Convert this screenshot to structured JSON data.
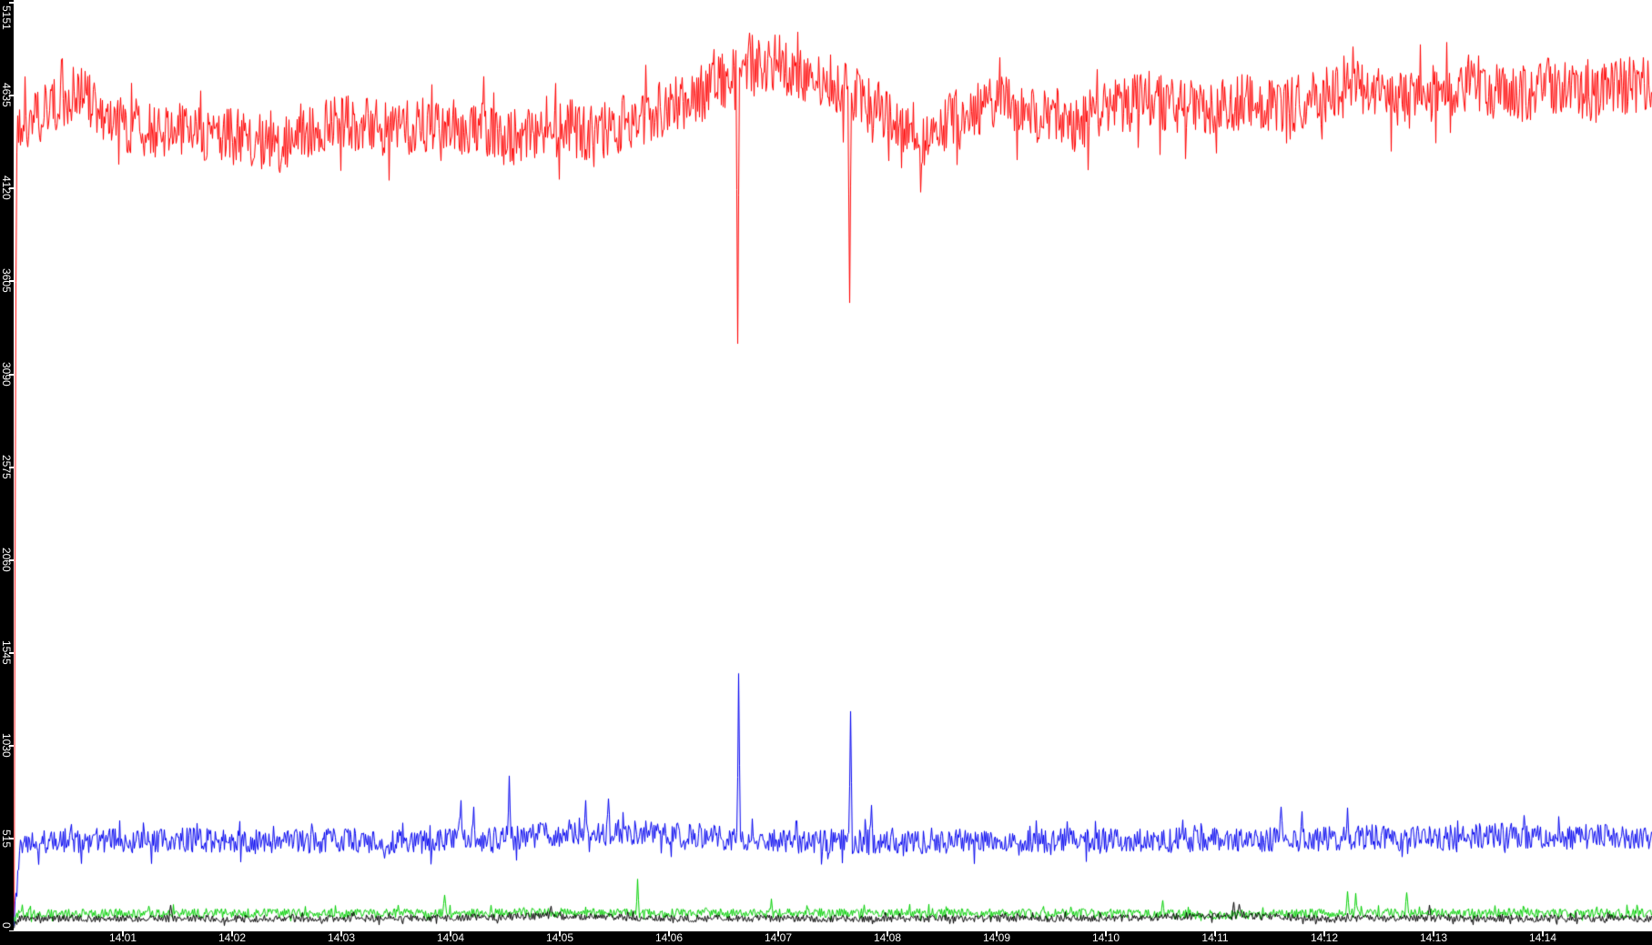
{
  "window": {
    "background_color": "#ffffff",
    "axis_bar_color": "#000000",
    "axis_text_color": "#ffffff",
    "axis_tick_color": "#ffffff"
  },
  "chart_data": {
    "type": "line",
    "title": "",
    "grid": "off",
    "legend": "none",
    "x_axis": {
      "start": "14:00",
      "end": "14:15",
      "minutes_per_tick": 1,
      "tick_labels": [
        "14:01",
        "14:02",
        "14:03",
        "14:04",
        "14:05",
        "14:06",
        "14:07",
        "14:08",
        "14:09",
        "14:10",
        "14:11",
        "14:12",
        "14:13",
        "14:14"
      ]
    },
    "y_axis": {
      "min": 0,
      "max": 5151,
      "tick_values": [
        5151,
        4635,
        4120,
        3605,
        3090,
        2575,
        2060,
        1545,
        1030,
        515,
        0
      ],
      "tick_labels": [
        "5151",
        "4635",
        "4120",
        "3605",
        "3090",
        "2575",
        "2060",
        "1545",
        "1030",
        "515",
        "0"
      ]
    },
    "series": [
      {
        "name": "red",
        "color": "#ff0000",
        "noise": 160,
        "anchors": [
          [
            0,
            200
          ],
          [
            0.02,
            4430
          ],
          [
            0.4,
            4600
          ],
          [
            0.6,
            4670
          ],
          [
            0.9,
            4470
          ],
          [
            1.3,
            4450
          ],
          [
            1.8,
            4420
          ],
          [
            2.2,
            4400
          ],
          [
            2.45,
            4350
          ],
          [
            2.7,
            4450
          ],
          [
            3.1,
            4480
          ],
          [
            3.5,
            4440
          ],
          [
            3.9,
            4480
          ],
          [
            4.3,
            4440
          ],
          [
            4.55,
            4400
          ],
          [
            4.9,
            4480
          ],
          [
            5.3,
            4430
          ],
          [
            5.7,
            4500
          ],
          [
            6.0,
            4570
          ],
          [
            6.3,
            4650
          ],
          [
            6.7,
            4780
          ],
          [
            7.0,
            4820
          ],
          [
            7.2,
            4750
          ],
          [
            7.5,
            4700
          ],
          [
            7.9,
            4560
          ],
          [
            8.15,
            4480
          ],
          [
            8.35,
            4390
          ],
          [
            8.6,
            4520
          ],
          [
            9.0,
            4600
          ],
          [
            9.35,
            4520
          ],
          [
            9.7,
            4480
          ],
          [
            10.0,
            4550
          ],
          [
            10.4,
            4620
          ],
          [
            10.8,
            4560
          ],
          [
            11.2,
            4600
          ],
          [
            11.6,
            4560
          ],
          [
            12.0,
            4640
          ],
          [
            12.4,
            4700
          ],
          [
            12.7,
            4600
          ],
          [
            13.0,
            4650
          ],
          [
            13.35,
            4720
          ],
          [
            13.7,
            4620
          ],
          [
            14.1,
            4700
          ],
          [
            14.5,
            4640
          ],
          [
            14.8,
            4700
          ],
          [
            15,
            4680
          ]
        ],
        "spikes": [
          [
            6.625,
            3260
          ],
          [
            7.65,
            3486
          ],
          [
            8.3,
            4100
          ]
        ]
      },
      {
        "name": "blue",
        "color": "#0000f0",
        "noise": 70,
        "anchors": [
          [
            0,
            60
          ],
          [
            0.02,
            190
          ],
          [
            0.06,
            480
          ],
          [
            0.5,
            505
          ],
          [
            1,
            500
          ],
          [
            1.5,
            510
          ],
          [
            2,
            495
          ],
          [
            2.5,
            500
          ],
          [
            3,
            505
          ],
          [
            3.5,
            495
          ],
          [
            4,
            505
          ],
          [
            4.5,
            515
          ],
          [
            5,
            540
          ],
          [
            5.4,
            555
          ],
          [
            5.8,
            545
          ],
          [
            6.2,
            530
          ],
          [
            6.6,
            515
          ],
          [
            7,
            500
          ],
          [
            7.5,
            500
          ],
          [
            8,
            495
          ],
          [
            8.5,
            500
          ],
          [
            9,
            505
          ],
          [
            9.5,
            500
          ],
          [
            10,
            510
          ],
          [
            10.5,
            505
          ],
          [
            11,
            510
          ],
          [
            11.5,
            505
          ],
          [
            12,
            515
          ],
          [
            12.5,
            525
          ],
          [
            13,
            515
          ],
          [
            13.5,
            535
          ],
          [
            14,
            520
          ],
          [
            14.5,
            525
          ],
          [
            15,
            520
          ]
        ],
        "spikes": [
          [
            4.09,
            727
          ],
          [
            4.21,
            691
          ],
          [
            4.53,
            863
          ],
          [
            5.23,
            727
          ],
          [
            5.44,
            736
          ],
          [
            6.63,
            1430
          ],
          [
            7.66,
            1221
          ],
          [
            7.85,
            700
          ],
          [
            11.6,
            691
          ],
          [
            11.79,
            666
          ],
          [
            12.21,
            686
          ]
        ]
      },
      {
        "name": "green",
        "color": "#00d000",
        "noise": 26,
        "anchors": [
          [
            0,
            60
          ],
          [
            0.05,
            100
          ],
          [
            2,
            102
          ],
          [
            4,
            100
          ],
          [
            5,
            104
          ],
          [
            6,
            100
          ],
          [
            8,
            102
          ],
          [
            10,
            100
          ],
          [
            11,
            92
          ],
          [
            12,
            100
          ],
          [
            13,
            102
          ],
          [
            15,
            100
          ]
        ],
        "spikes": [
          [
            3.52,
            146
          ],
          [
            3.94,
            202
          ],
          [
            5.71,
            290
          ],
          [
            6.93,
            180
          ],
          [
            10.52,
            172
          ],
          [
            12.21,
            222
          ],
          [
            12.28,
            212
          ],
          [
            12.75,
            215
          ]
        ]
      },
      {
        "name": "black",
        "color": "#000000",
        "noise": 20,
        "anchors": [
          [
            0,
            35
          ],
          [
            0.05,
            72
          ],
          [
            2,
            70
          ],
          [
            4,
            74
          ],
          [
            4.9,
            85
          ],
          [
            6,
            72
          ],
          [
            8,
            70
          ],
          [
            10,
            72
          ],
          [
            11.2,
            88
          ],
          [
            12,
            70
          ],
          [
            13,
            72
          ],
          [
            15,
            70
          ]
        ],
        "spikes": [
          [
            1.43,
            146
          ],
          [
            4.92,
            140
          ],
          [
            11.17,
            162
          ],
          [
            11.22,
            150
          ],
          [
            12.96,
            146
          ]
        ]
      }
    ]
  }
}
